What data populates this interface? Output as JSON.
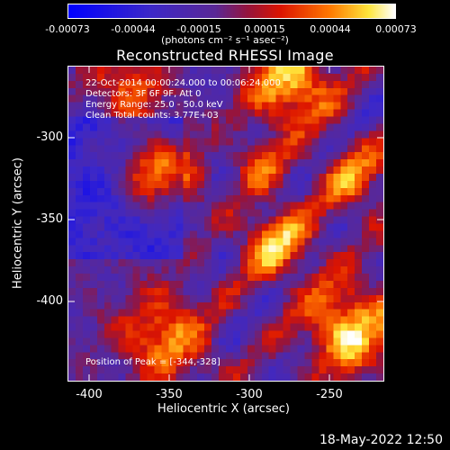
{
  "colorbar": {
    "ticks": [
      "-0.00073",
      "-0.00044",
      "-0.00015",
      "0.00015",
      "0.00044",
      "0.00073"
    ],
    "units": "(photons cm⁻² s⁻¹ asec⁻²)"
  },
  "title": "Reconstructed RHESSI Image",
  "info": {
    "time_range": "22-Oct-2014 00:00:24.000 to 00:06:24.000",
    "detectors": "Detectors: 3F 6F 9F, Att 0",
    "energy_range": "Energy Range: 25.0 - 50.0 keV",
    "clean_counts": "Clean    Total counts: 3.77E+03",
    "peak": "Position of Peak = [-344,-328]"
  },
  "axes": {
    "xlabel": "Heliocentric X (arcsec)",
    "ylabel": "Heliocentric Y (arcsec)",
    "xticks": [
      "-400",
      "-350",
      "-300",
      "-250"
    ],
    "yticks": [
      "-300",
      "-350",
      "-400"
    ]
  },
  "timestamp": "18-May-2022 12:50",
  "colors": {
    "background": "#000000",
    "colormap_low": "#0000ff",
    "colormap_mid": "#4b1f8f",
    "colormap_high": "#ffffff",
    "hot": "#ff6a00"
  }
}
